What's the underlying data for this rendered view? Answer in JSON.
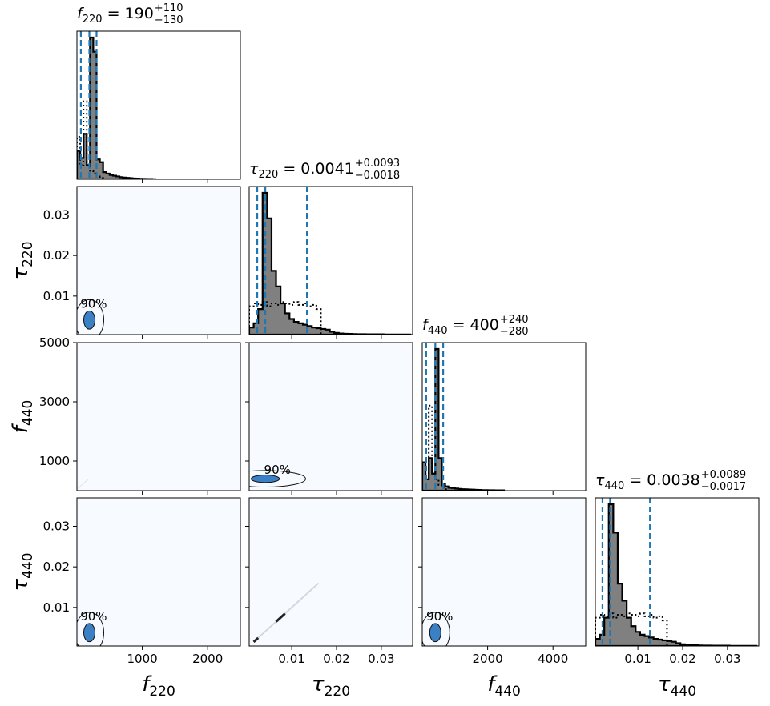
{
  "chart_data": {
    "type": "corner",
    "parameters": [
      {
        "key": "f220",
        "symbol": "f",
        "sub": "220",
        "range": [
          0,
          2500
        ],
        "ticks": [
          1000,
          2000
        ],
        "tick_labels": [
          "1000",
          "2000"
        ]
      },
      {
        "key": "t220",
        "symbol": "τ",
        "sub": "220",
        "range": [
          0.0005,
          0.037
        ],
        "ticks": [
          0.01,
          0.02,
          0.03
        ],
        "tick_labels": [
          "0.01",
          "0.02",
          "0.03"
        ]
      },
      {
        "key": "f440",
        "symbol": "f",
        "sub": "440",
        "range": [
          0,
          5000
        ],
        "ticks": [
          1000,
          3000,
          5000
        ],
        "tick_labels": [
          "1000",
          "3000",
          "5000"
        ],
        "xticks": [
          2000,
          4000
        ],
        "xtick_labels": [
          "2000",
          "4000"
        ]
      },
      {
        "key": "t440",
        "symbol": "τ",
        "sub": "440",
        "range": [
          0.0005,
          0.037
        ],
        "ticks": [
          0.01,
          0.02,
          0.03
        ],
        "tick_labels": [
          "0.01",
          "0.02",
          "0.03"
        ]
      }
    ],
    "titles": [
      {
        "lhs": "f",
        "sub": "220",
        "eq": " = 190",
        "sup": "+110",
        "inf": "−130"
      },
      {
        "lhs": "τ",
        "sub": "220",
        "eq": " = 0.0041",
        "sup": "+0.0093",
        "inf": "−0.0018"
      },
      {
        "lhs": "f",
        "sub": "440",
        "eq": " = 400",
        "sup": "+240",
        "inf": "−280"
      },
      {
        "lhs": "τ",
        "sub": "440",
        "eq": " = 0.0038",
        "sup": "+0.0089",
        "inf": "−0.0017"
      }
    ],
    "quantiles": [
      [
        60,
        190,
        300
      ],
      [
        0.0023,
        0.0041,
        0.0134
      ],
      [
        120,
        400,
        640
      ],
      [
        0.0021,
        0.0038,
        0.0127
      ]
    ],
    "histograms": [
      {
        "step": 50,
        "counts": [
          0.2,
          0.15,
          0.32,
          0.1,
          1.0,
          0.9,
          0.14,
          0.12,
          0.05,
          0.04,
          0.03,
          0.025,
          0.02,
          0.015,
          0.012,
          0.01,
          0.008,
          0.006,
          0.005,
          0.004,
          0.003,
          0.002,
          0.002,
          0.001
        ],
        "prior": [
          0.3,
          0.1,
          0.55,
          0.12,
          0.06,
          0.04,
          0.02,
          0.01
        ]
      },
      {
        "step": 0.001,
        "counts": [
          0.05,
          0.08,
          0.18,
          1.0,
          0.82,
          0.45,
          0.34,
          0.22,
          0.15,
          0.11,
          0.09,
          0.08,
          0.07,
          0.06,
          0.05,
          0.045,
          0.04,
          0.035,
          0.02,
          0.012,
          0.008,
          0.006,
          0.005,
          0.004,
          0.003,
          0.003,
          0.002,
          0.002,
          0.002,
          0.002,
          0.001,
          0.001,
          0.001,
          0.001,
          0.001,
          0.001
        ],
        "prior": [
          0.2,
          0.22,
          0.21,
          0.23,
          0.2,
          0.22,
          0.21,
          0.23,
          0.22,
          0.21,
          0.23,
          0.21,
          0.22,
          0.2,
          0.21,
          0.18
        ]
      },
      {
        "step": 100,
        "counts": [
          0.2,
          0.08,
          0.23,
          0.12,
          1.0,
          0.23,
          0.05,
          0.03,
          0.02,
          0.018,
          0.015,
          0.012,
          0.01,
          0.009,
          0.008,
          0.007,
          0.006,
          0.005,
          0.004,
          0.004,
          0.003,
          0.003,
          0.002,
          0.002,
          0.002
        ],
        "prior": [
          0.15,
          0.12,
          0.6,
          0.14,
          0.08,
          0.04,
          0.02,
          0.01
        ]
      },
      {
        "step": 0.001,
        "counts": [
          0.05,
          0.08,
          0.2,
          1.0,
          0.8,
          0.44,
          0.32,
          0.2,
          0.14,
          0.1,
          0.08,
          0.07,
          0.06,
          0.05,
          0.045,
          0.04,
          0.035,
          0.03,
          0.02,
          0.012,
          0.008,
          0.006,
          0.005,
          0.004,
          0.003,
          0.003,
          0.002,
          0.002,
          0.002,
          0.002,
          0.001,
          0.001,
          0.001,
          0.001,
          0.001,
          0.001
        ],
        "prior": [
          0.2,
          0.22,
          0.21,
          0.23,
          0.2,
          0.22,
          0.21,
          0.23,
          0.22,
          0.21,
          0.23,
          0.21,
          0.22,
          0.2,
          0.21,
          0.18
        ]
      }
    ],
    "contours": [
      {
        "row": 1,
        "col": 0,
        "label": "90%",
        "cx": 190,
        "cy": 0.0041,
        "sx": 170,
        "sy": 0.005
      },
      {
        "row": 2,
        "col": 1,
        "label": "90%",
        "cx": 0.0041,
        "cy": 400,
        "sx": 0.009,
        "sy": 280
      },
      {
        "row": 3,
        "col": 0,
        "label": "90%",
        "cx": 190,
        "cy": 0.0038,
        "sx": 170,
        "sy": 0.005
      },
      {
        "row": 3,
        "col": 2,
        "label": "90%",
        "cx": 400,
        "cy": 0.0038,
        "sx": 300,
        "sy": 0.005
      }
    ],
    "colors": {
      "hist_fill": "#808080",
      "quantile": "#1f77b4",
      "density_bg": "#f7fbff",
      "contour_fill": "#3b7fc4"
    },
    "grid": false
  }
}
